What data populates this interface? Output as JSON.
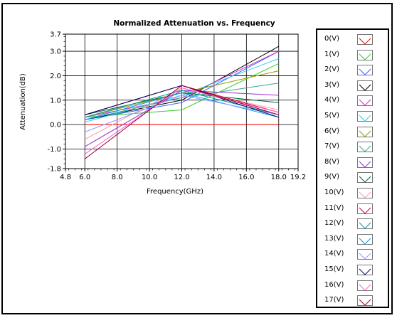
{
  "chart_data": {
    "type": "line",
    "title": "Normalized Attenuation vs. Frequency",
    "xlabel": "Frequency(GHz)",
    "ylabel": "Attenuation(dB)",
    "xlim": [
      4.8,
      19.2
    ],
    "ylim": [
      -1.8,
      3.7
    ],
    "x_ticks": [
      4.8,
      6.0,
      8.0,
      10.0,
      12.0,
      14.0,
      16.0,
      18.0,
      19.2
    ],
    "x_tick_labels": [
      "4.8",
      "6.0",
      "8.0",
      "10.0",
      "12.0",
      "14.0",
      "16.0",
      "18.0",
      "19.2"
    ],
    "y_ticks": [
      -1.8,
      -1.0,
      0.0,
      1.0,
      2.0,
      3.0,
      3.7
    ],
    "y_tick_labels": [
      "-1.8",
      "-1.0",
      "0.0",
      "1.0",
      "2.0",
      "3.0",
      "3.7"
    ],
    "grid": true,
    "legend_position": "right",
    "x": [
      6.0,
      12.0,
      18.0
    ],
    "series": [
      {
        "name": "0(V)",
        "color": "#ff0000",
        "values": [
          0.0,
          0.0,
          0.0
        ]
      },
      {
        "name": "1(V)",
        "color": "#33cc33",
        "values": [
          0.3,
          0.6,
          2.5
        ]
      },
      {
        "name": "2(V)",
        "color": "#3366ff",
        "values": [
          0.2,
          0.9,
          3.0
        ]
      },
      {
        "name": "3(V)",
        "color": "#000000",
        "values": [
          0.2,
          1.0,
          3.2
        ]
      },
      {
        "name": "4(V)",
        "color": "#cc33cc",
        "values": [
          0.3,
          1.1,
          3.0
        ]
      },
      {
        "name": "5(V)",
        "color": "#33ccee",
        "values": [
          0.1,
          1.2,
          2.7
        ]
      },
      {
        "name": "6(V)",
        "color": "#999900",
        "values": [
          0.3,
          1.3,
          2.2
        ]
      },
      {
        "name": "7(V)",
        "color": "#33aa88",
        "values": [
          0.2,
          1.1,
          1.7
        ]
      },
      {
        "name": "8(V)",
        "color": "#9933cc",
        "values": [
          -0.9,
          1.4,
          1.2
        ]
      },
      {
        "name": "9(V)",
        "color": "#006633",
        "values": [
          0.4,
          1.3,
          0.9
        ]
      },
      {
        "name": "10(V)",
        "color": "#ff99aa",
        "values": [
          -0.6,
          1.5,
          0.6
        ]
      },
      {
        "name": "11(V)",
        "color": "#cc0033",
        "values": [
          0.4,
          1.6,
          0.5
        ]
      },
      {
        "name": "12(V)",
        "color": "#009999",
        "values": [
          0.3,
          1.4,
          0.4
        ]
      },
      {
        "name": "13(V)",
        "color": "#0099ff",
        "values": [
          0.2,
          1.3,
          0.3
        ]
      },
      {
        "name": "14(V)",
        "color": "#9999ff",
        "values": [
          -0.3,
          1.2,
          0.4
        ]
      },
      {
        "name": "15(V)",
        "color": "#000066",
        "values": [
          0.4,
          1.6,
          0.3
        ]
      },
      {
        "name": "16(V)",
        "color": "#ff66cc",
        "values": [
          -1.2,
          1.5,
          0.5
        ]
      },
      {
        "name": "17(V)",
        "color": "#990033",
        "values": [
          -1.4,
          1.6,
          0.4
        ]
      }
    ]
  }
}
